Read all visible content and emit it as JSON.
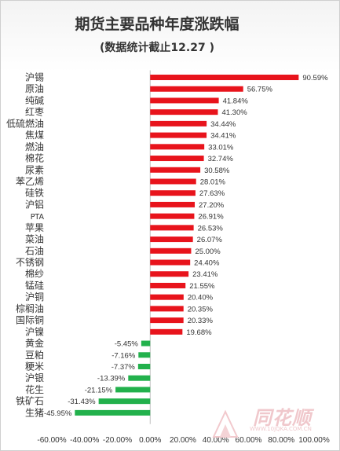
{
  "chart_data": {
    "type": "bar",
    "orientation": "horizontal",
    "title": "期货主要品种年度涨跌幅",
    "subtitle": "(数据统计截止12.27 )",
    "categories": [
      "沪锡",
      "原油",
      "纯碱",
      "红枣",
      "低硫燃油",
      "焦煤",
      "燃油",
      "棉花",
      "尿素",
      "苯乙烯",
      "硅铁",
      "沪铝",
      "PTA",
      "苹果",
      "菜油",
      "石油",
      "不锈钢",
      "棉纱",
      "锰硅",
      "沪铜",
      "棕榈油",
      "国际铜",
      "沪镍",
      "黄金",
      "豆粕",
      "粳米",
      "沪银",
      "花生",
      "铁矿石",
      "生猪"
    ],
    "values": [
      90.59,
      56.75,
      41.84,
      41.3,
      34.44,
      34.41,
      33.01,
      32.74,
      30.58,
      28.01,
      27.63,
      27.2,
      26.91,
      26.53,
      26.07,
      25.0,
      24.4,
      23.41,
      21.55,
      20.4,
      20.35,
      20.33,
      19.68,
      -5.45,
      -7.16,
      -7.37,
      -13.39,
      -21.15,
      -31.43,
      -45.95
    ],
    "value_labels": [
      "90.59%",
      "56.75%",
      "41.84%",
      "41.30%",
      "34.44%",
      "34.41%",
      "33.01%",
      "32.74%",
      "30.58%",
      "28.01%",
      "27.63%",
      "27.20%",
      "26.91%",
      "26.53%",
      "26.07%",
      "25.00%",
      "24.40%",
      "23.41%",
      "21.55%",
      "20.40%",
      "20.35%",
      "20.33%",
      "19.68%",
      "-5.45%",
      "-7.16%",
      "-7.37%",
      "-13.39%",
      "-21.15%",
      "-31.43%",
      "-45.95%"
    ],
    "xlim": [
      -60,
      100
    ],
    "xticks": [
      "-60.00%",
      "-40.00%",
      "-20.00%",
      "0.00%",
      "20.00%",
      "40.00%",
      "60.00%",
      "80.00%",
      "100.00%"
    ],
    "tick_values": [
      -60,
      -40,
      -20,
      0,
      20,
      40,
      60,
      80,
      100
    ],
    "grid": false,
    "colors": {
      "positive": "#e8141c",
      "negative": "#22b14c",
      "text": "#333333",
      "axis": "#bfbfbf"
    }
  },
  "watermark": {
    "brand": "同花顺",
    "url": "WWW.10JQKA.COM.CN"
  }
}
